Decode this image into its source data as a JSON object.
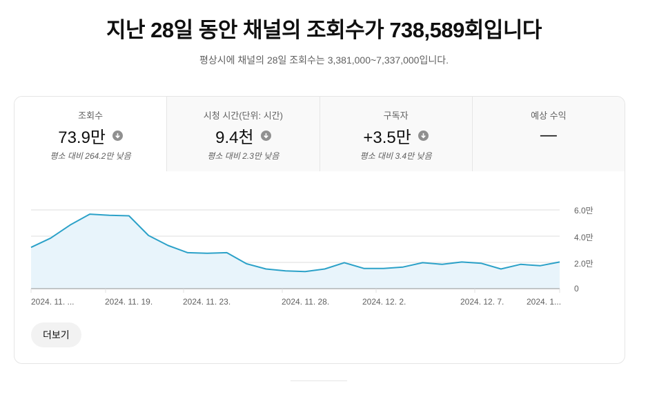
{
  "header": {
    "title": "지난 28일 동안 채널의 조회수가 738,589회입니다",
    "subtitle": "평상시에 채널의 28일 조회수는 3,381,000~7,337,000입니다."
  },
  "tabs": [
    {
      "label": "조회수",
      "value": "73.9만",
      "icon": "arrow-down-circle-icon",
      "sub": "평소 대비 264.2만 낮음",
      "active": true
    },
    {
      "label": "시청 시간(단위: 시간)",
      "value": "9.4천",
      "icon": "arrow-down-circle-icon",
      "sub": "평소 대비 2.3만 낮음",
      "active": false
    },
    {
      "label": "구독자",
      "value": "+3.5만",
      "icon": "arrow-down-circle-icon",
      "sub": "평소 대비 3.4만 낮음",
      "active": false
    },
    {
      "label": "예상 수익",
      "value": "—",
      "icon": null,
      "sub": "",
      "active": false
    }
  ],
  "chart": {
    "line_color": "#2ba1c8",
    "fill_color": "#e8f4fb",
    "y_ticks": [
      "6.0만",
      "4.0만",
      "2.0만",
      "0"
    ],
    "x_ticks": [
      "2024. 11. ...",
      "2024. 11. 19.",
      "2024. 11. 23.",
      "2024. 11. 28.",
      "2024. 12. 2.",
      "2024. 12. 7.",
      "2024. 1..."
    ]
  },
  "chart_data": {
    "type": "area",
    "title": "조회수",
    "xlabel": "",
    "ylabel": "조회수",
    "ylim": [
      0,
      60000
    ],
    "grid": true,
    "x": [
      "2024. 11. 15.",
      "2024. 11. 16.",
      "2024. 11. 17.",
      "2024. 11. 18.",
      "2024. 11. 19.",
      "2024. 11. 20.",
      "2024. 11. 21.",
      "2024. 11. 22.",
      "2024. 11. 23.",
      "2024. 11. 24.",
      "2024. 11. 25.",
      "2024. 11. 26.",
      "2024. 11. 27.",
      "2024. 11. 28.",
      "2024. 11. 29.",
      "2024. 11. 30.",
      "2024. 12. 1.",
      "2024. 12. 2.",
      "2024. 12. 3.",
      "2024. 12. 4.",
      "2024. 12. 5.",
      "2024. 12. 6.",
      "2024. 12. 7.",
      "2024. 12. 8.",
      "2024. 12. 9.",
      "2024. 12. 10.",
      "2024. 12. 11.",
      "2024. 12. 12."
    ],
    "series": [
      {
        "name": "조회수",
        "values": [
          31500,
          38500,
          48500,
          56800,
          55900,
          55500,
          40500,
          32900,
          27400,
          27000,
          27400,
          19000,
          15000,
          13500,
          13000,
          15000,
          19800,
          15400,
          15400,
          16500,
          19800,
          18500,
          20300,
          19300,
          15000,
          18500,
          17500,
          20300
        ]
      }
    ]
  },
  "footer": {
    "more_label": "더보기"
  }
}
